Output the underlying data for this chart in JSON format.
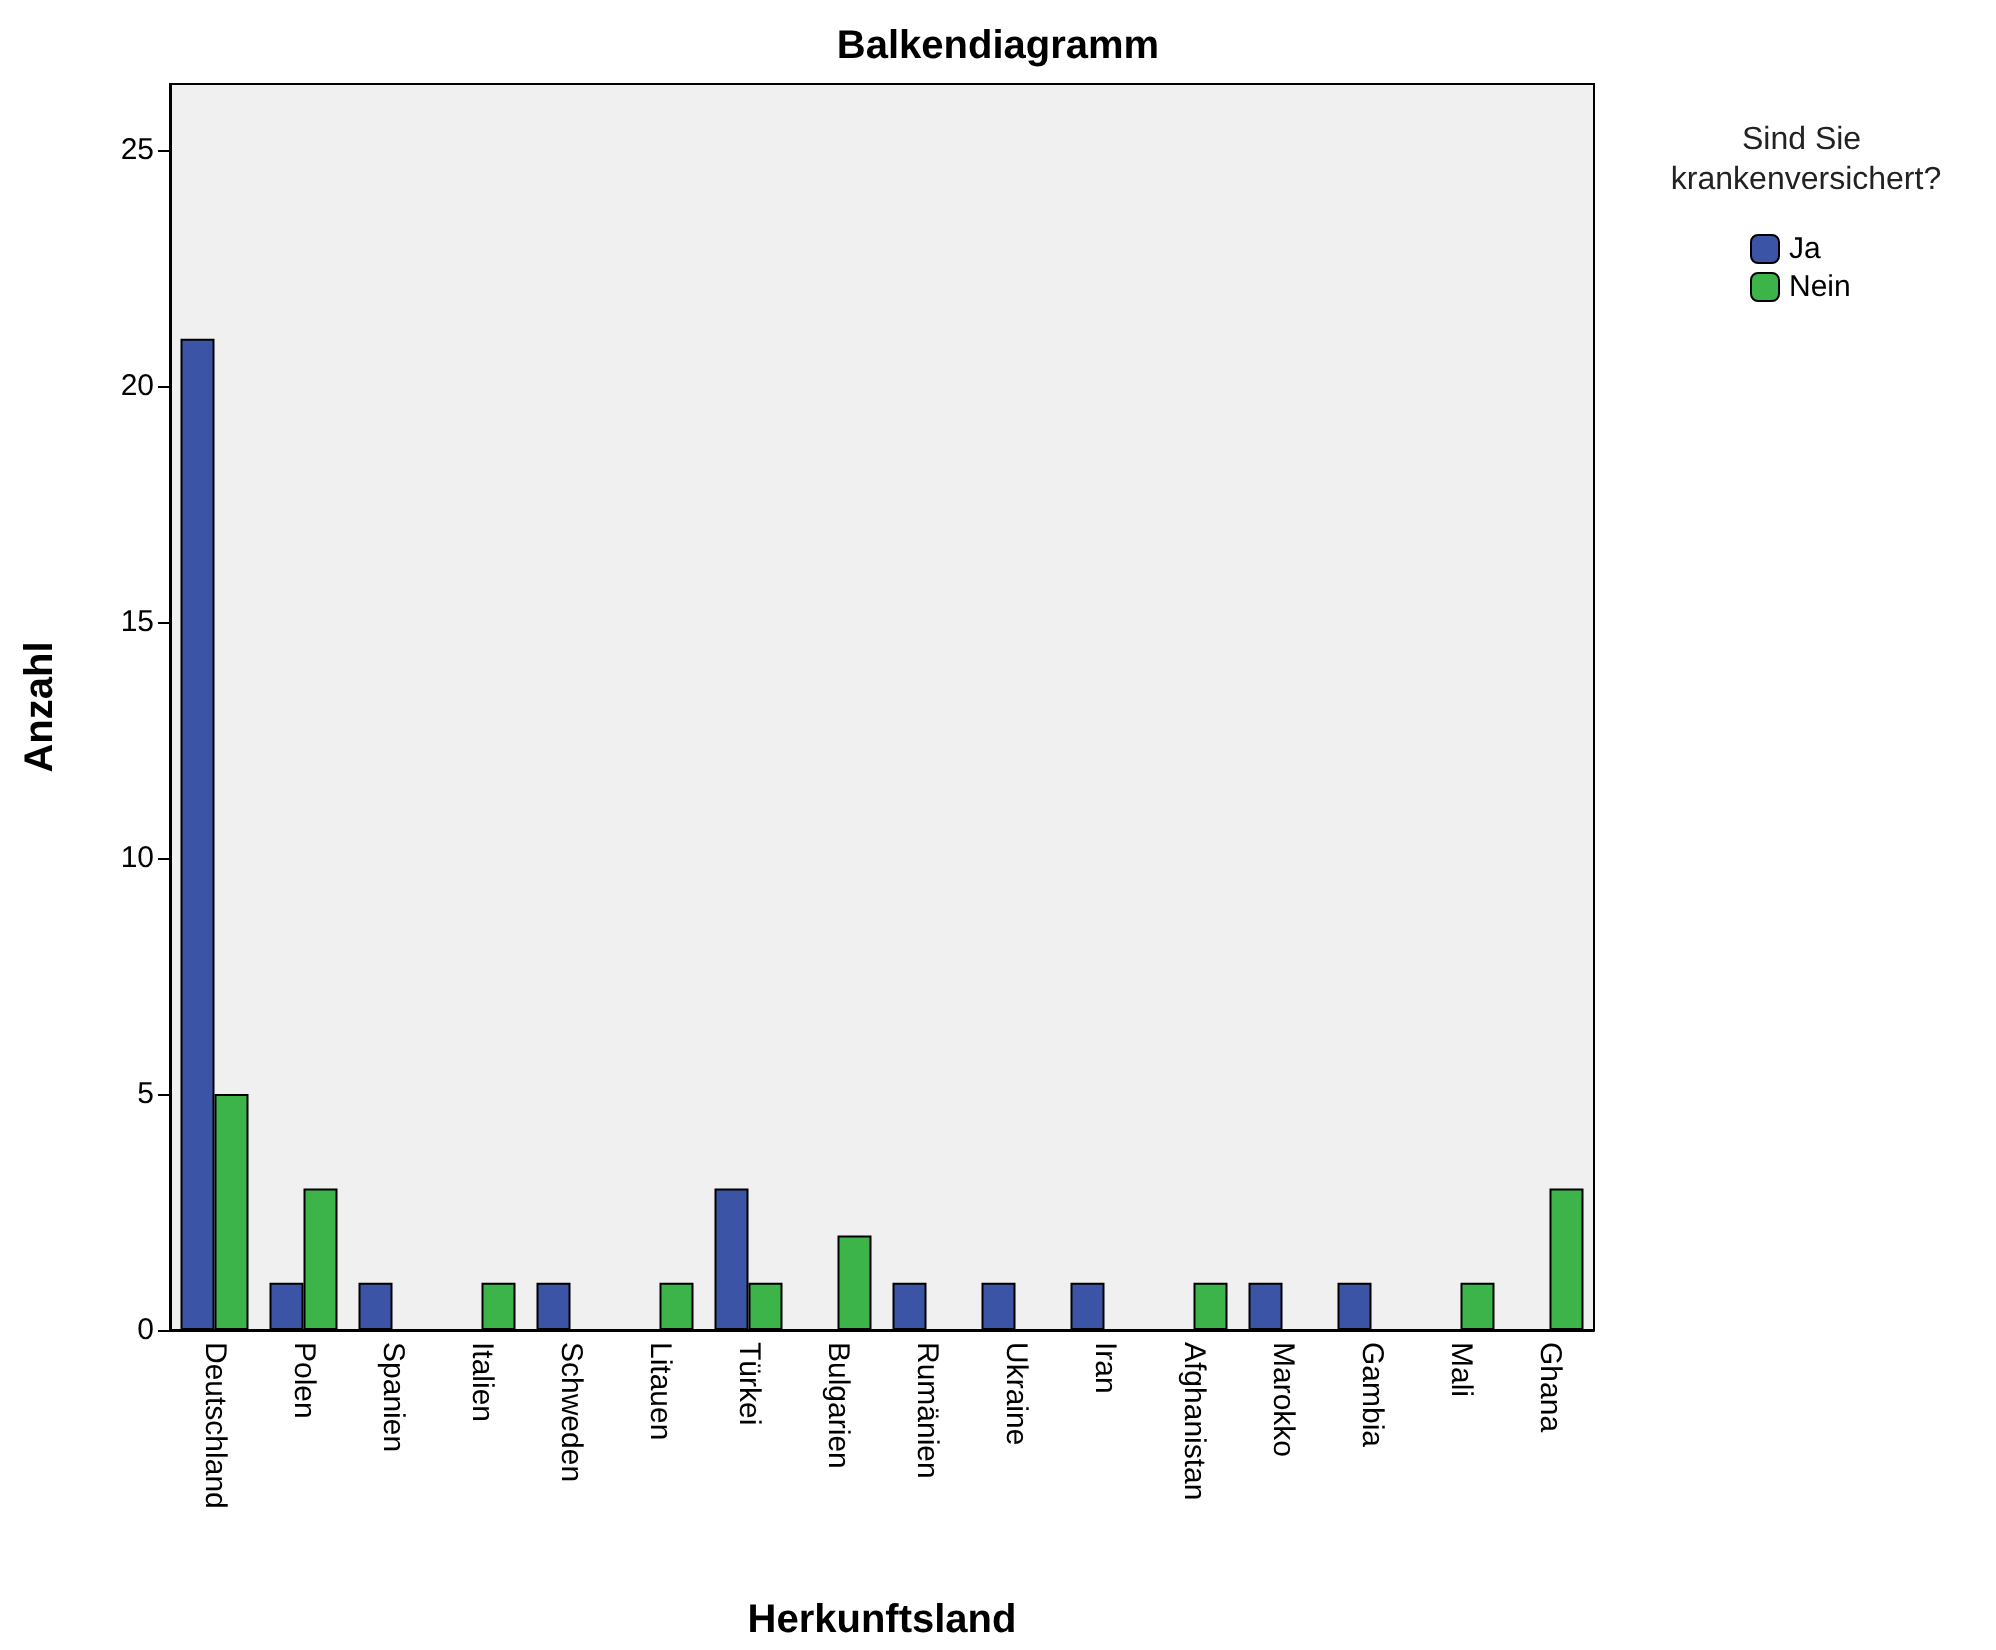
{
  "chart_data": {
    "type": "bar",
    "title": "Balkendiagramm",
    "xlabel": "Herkunftsland",
    "ylabel": "Anzahl",
    "legend_title": "Sind Sie krankenversichert?",
    "categories": [
      "Deutschland",
      "Polen",
      "Spanien",
      "Italien",
      "Schweden",
      "Litauen",
      "Türkei",
      "Bulgarien",
      "Rumänien",
      "Ukraine",
      "Iran",
      "Afghanistan",
      "Marokko",
      "Gambia",
      "Mali",
      "Ghana"
    ],
    "series": [
      {
        "name": "Ja",
        "color": "#3b54a5",
        "values": [
          21,
          1,
          1,
          null,
          1,
          null,
          3,
          null,
          1,
          1,
          1,
          null,
          1,
          1,
          null,
          null
        ]
      },
      {
        "name": "Nein",
        "color": "#3cb44a",
        "values": [
          5,
          3,
          null,
          1,
          null,
          1,
          1,
          2,
          null,
          null,
          null,
          1,
          null,
          null,
          1,
          3
        ]
      }
    ],
    "ylim": [
      0,
      26.4
    ],
    "yticks": [
      0,
      5,
      10,
      15,
      20,
      25
    ],
    "grid": false,
    "legend": "top right"
  }
}
